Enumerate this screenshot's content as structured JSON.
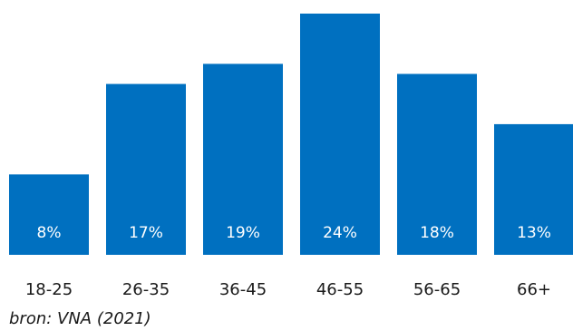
{
  "source_note": "bron: VNA (2021)",
  "chart_data": {
    "type": "bar",
    "categories": [
      "18-25",
      "26-35",
      "36-45",
      "46-55",
      "56-65",
      "66+"
    ],
    "values": [
      8,
      17,
      19,
      24,
      18,
      13
    ],
    "value_labels": [
      "8%",
      "17%",
      "19%",
      "24%",
      "18%",
      "13%"
    ],
    "unit": "%",
    "title": "",
    "xlabel": "",
    "ylabel": "",
    "ylim": [
      0,
      24
    ],
    "grid": false,
    "legend": "none",
    "bar_color": "#0070C0",
    "label_color": "#ffffff"
  }
}
